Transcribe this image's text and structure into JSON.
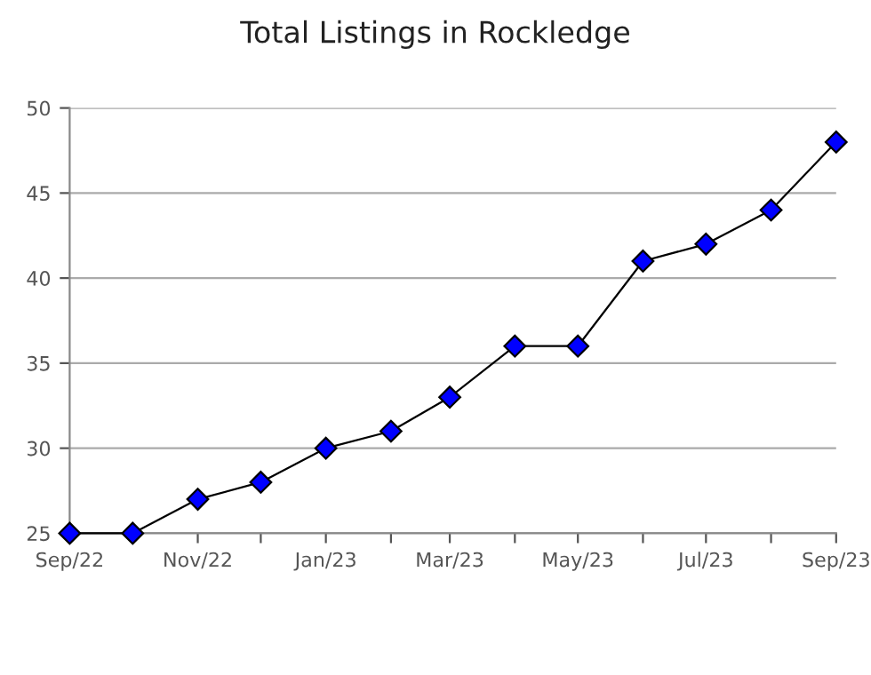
{
  "chart_data": {
    "type": "line",
    "title": "Total Listings in Rockledge",
    "x": [
      "2022-09",
      "2022-10",
      "2022-11",
      "2022-12",
      "2023-01",
      "2023-02",
      "2023-03",
      "2023-04",
      "2023-05",
      "2023-06",
      "2023-07",
      "2023-08",
      "2023-09"
    ],
    "series": [
      {
        "color": "#0000ff",
        "values": [
          25,
          25,
          27,
          28,
          30,
          31,
          33,
          36,
          36,
          41,
          42,
          44,
          48
        ]
      }
    ],
    "xlim": [
      "2022-09",
      "2023-09"
    ],
    "xticks": [
      {
        "value": "2022-09",
        "label": "Sep/22"
      },
      {
        "value": "2022-10",
        "label": null
      },
      {
        "value": "2022-11",
        "label": "Nov/22"
      },
      {
        "value": "2022-12",
        "label": null
      },
      {
        "value": "2023-01",
        "label": "Jan/23"
      },
      {
        "value": "2023-02",
        "label": null
      },
      {
        "value": "2023-03",
        "label": "Mar/23"
      },
      {
        "value": "2023-04",
        "label": null
      },
      {
        "value": "2023-05",
        "label": "May/23"
      },
      {
        "value": "2023-06",
        "label": null
      },
      {
        "value": "2023-07",
        "label": "Jul/23"
      },
      {
        "value": "2023-08",
        "label": null
      },
      {
        "value": "2023-09",
        "label": "Sep/23"
      }
    ],
    "ylim": [
      25,
      50
    ],
    "yticks": [
      25,
      30,
      35,
      40,
      45,
      50
    ],
    "grid": "y",
    "marker": "diamond",
    "line_style": "solid",
    "legend": false
  }
}
